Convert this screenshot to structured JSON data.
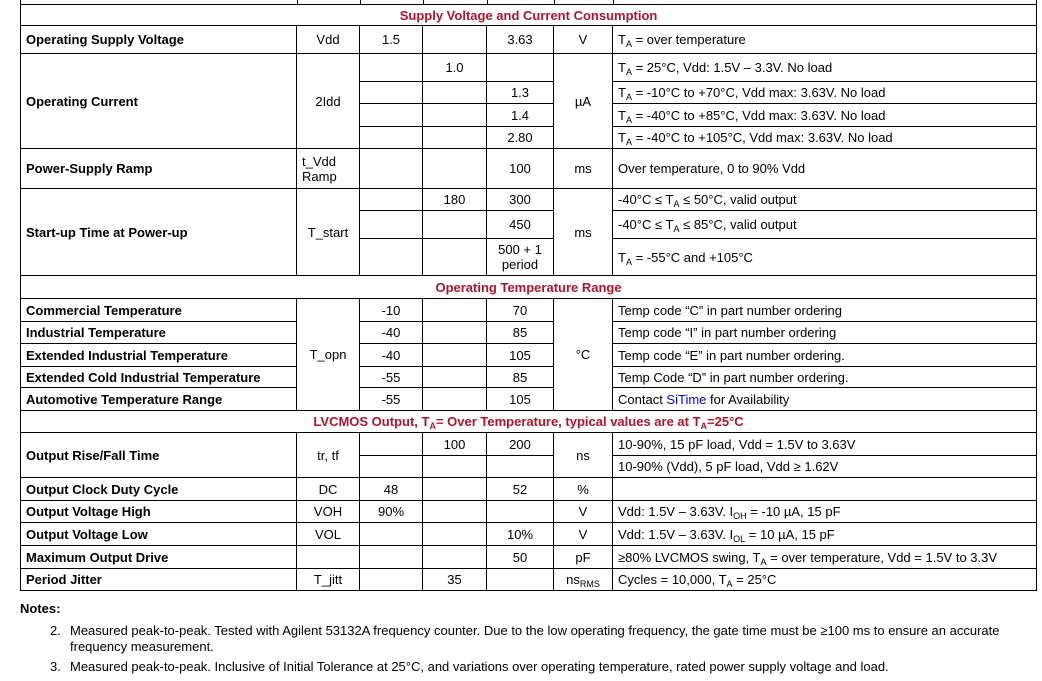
{
  "sections": {
    "supply": "Supply Voltage and Current Consumption",
    "temp": "Operating Temperature Range",
    "output_pre": "LVCMOS Output, T",
    "output_mid": "= Over Temperature, typical values are at T",
    "output_post": "=25°C"
  },
  "rows": {
    "vdd": {
      "param": "Operating Supply Voltage",
      "sym": "Vdd",
      "min": "1.5",
      "max": "3.63",
      "unit": "V",
      "cond_pre": "T",
      "cond_sub": "A",
      "cond": " = over temperature"
    },
    "idd": {
      "param": "Operating Current",
      "sym": "2Idd",
      "unit": "µA",
      "r1_typ": "1.0",
      "r1_cond": " = 25°C, Vdd: 1.5V – 3.3V. No load",
      "r2_max": "1.3",
      "r2_cond": " = -10°C to +70°C, Vdd max: 3.63V. No load",
      "r3_max": "1.4",
      "r3_cond": " = -40°C to +85°C, Vdd max: 3.63V. No load",
      "r4_max": "2.80",
      "r4_cond": " = -40°C to +105°C, Vdd max: 3.63V. No load"
    },
    "ramp": {
      "param": "Power-Supply Ramp",
      "sym1": "t_Vdd",
      "sym2": "Ramp",
      "max": "100",
      "unit": "ms",
      "cond": "Over temperature, 0 to 90% Vdd"
    },
    "start": {
      "param": "Start-up Time at Power-up",
      "sym": "T_start",
      "unit": "ms",
      "r1_typ": "180",
      "r1_max": "300",
      "r1_cond_a": "-40°C ≤ T",
      "r1_cond_b": " ≤ 50°C, valid output",
      "r2_max": "450",
      "r2_cond_a": "-40°C ≤ T",
      "r2_cond_b": " ≤ 85°C, valid output",
      "r3_max1": "500 + 1",
      "r3_max2": "period",
      "r3_cond": " = -55°C and +105°C"
    },
    "temp": {
      "sym": "T_opn",
      "unit": "°C",
      "items": [
        {
          "param": "Commercial Temperature",
          "min": "-10",
          "max": "70",
          "cond": "Temp code “C” in part number ordering"
        },
        {
          "param": "Industrial Temperature",
          "min": "-40",
          "max": "85",
          "cond": "Temp code “I” in part number ordering"
        },
        {
          "param": "Extended Industrial Temperature",
          "min": "-40",
          "max": "105",
          "cond": "Temp code “E” in part number ordering."
        },
        {
          "param": "Extended Cold Industrial Temperature",
          "min": "-55",
          "max": "85",
          "cond": "Temp Code “D” in part number ordering."
        },
        {
          "param": "Automotive Temperature Range",
          "min": "-55",
          "max": "105",
          "cond_pre": "Contact ",
          "cond_link": "SiTime",
          "cond_post": " for Availability"
        }
      ]
    },
    "rise": {
      "param": "Output Rise/Fall Time",
      "sym": "tr, tf",
      "typ": "100",
      "max": "200",
      "unit": "ns",
      "cond1": "10-90%, 15 pF load, Vdd = 1.5V to 3.63V",
      "cond2": "10-90% (Vdd), 5 pF load, Vdd ≥ 1.62V"
    },
    "dc": {
      "param": "Output Clock Duty Cycle",
      "sym": "DC",
      "min": "48",
      "max": "52",
      "unit": "%"
    },
    "voh": {
      "param": "Output Voltage High",
      "sym": "VOH",
      "min": "90%",
      "unit": "V",
      "cond_a": "Vdd: 1.5V – 3.63V. I",
      "cond_sub": "OH",
      "cond_b": " = -10 µA, 15 pF"
    },
    "vol": {
      "param": "Output Voltage Low",
      "sym": "VOL",
      "max": "10%",
      "unit": "V",
      "cond_a": "Vdd: 1.5V – 3.63V. I",
      "cond_sub": "OL",
      "cond_b": " = 10 µA, 15 pF"
    },
    "drive": {
      "param": "Maximum Output Drive",
      "max": "50",
      "unit": "pF",
      "cond_a": "≥80% LVCMOS swing, T",
      "cond_b": " = over temperature, Vdd = 1.5V to 3.3V"
    },
    "jitter": {
      "param": "Period Jitter",
      "sym": "T_jitt",
      "typ": "35",
      "unit": "ns",
      "unit_sub": "RMS",
      "cond_a": "Cycles = 10,000, T",
      "cond_b": " = 25°C"
    }
  },
  "sub_a": "A",
  "notes": {
    "heading": "Notes:",
    "items": [
      {
        "num": "2.",
        "text": "Measured peak-to-peak. Tested with Agilent 53132A frequency counter. Due to the low operating frequency, the gate time must be ≥100 ms to ensure an accurate frequency measurement."
      },
      {
        "num": "3.",
        "text": "Measured peak-to-peak. Inclusive of Initial Tolerance at 25°C, and variations over operating temperature, rated power supply voltage and load."
      }
    ]
  }
}
